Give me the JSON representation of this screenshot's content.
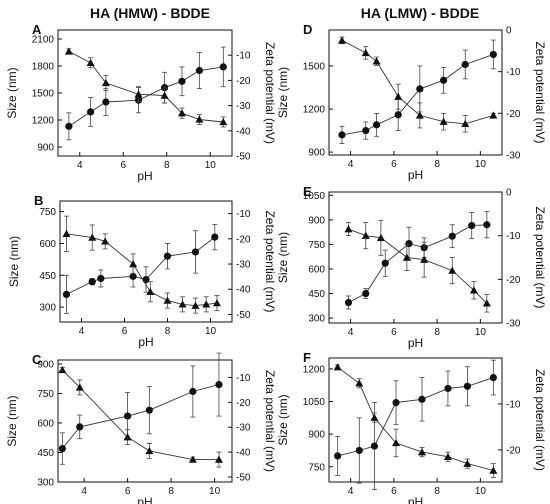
{
  "titles": {
    "left": "HA (HMW) - BDDE",
    "right": "HA (LMW) - BDDE"
  },
  "chart_data": [
    {
      "panel": "A",
      "type": "line",
      "xlabel": "pH",
      "ylabel": "Size (nm)",
      "y2label": "Zeta potential (mV)",
      "xlim": [
        3,
        11
      ],
      "ylim": [
        800,
        2200
      ],
      "y2lim": [
        -50,
        0
      ],
      "xticks": [
        4,
        6,
        8,
        10
      ],
      "yticks": [
        900,
        1200,
        1500,
        1800,
        2100
      ],
      "y2ticks": [
        -50,
        -40,
        -30,
        -20,
        -10
      ],
      "series": [
        {
          "marker": "circle",
          "axis": "left",
          "x": [
            3.5,
            4.5,
            5.2,
            6.7,
            7.9,
            8.7,
            9.5,
            10.6
          ],
          "y": [
            1130,
            1290,
            1400,
            1420,
            1560,
            1630,
            1750,
            1790
          ],
          "err": [
            150,
            160,
            150,
            140,
            170,
            160,
            200,
            220
          ]
        },
        {
          "marker": "triangle",
          "axis": "right",
          "x": [
            3.5,
            4.5,
            5.2,
            6.7,
            7.9,
            8.7,
            9.5,
            10.6
          ],
          "y": [
            -8.5,
            -13,
            -21,
            -25.5,
            -26,
            -33,
            -35.5,
            -36.5
          ],
          "err": [
            1,
            2,
            3,
            3,
            3,
            2,
            2,
            2
          ]
        }
      ]
    },
    {
      "panel": "B",
      "type": "line",
      "xlabel": "pH",
      "ylabel": "Size (nm)",
      "y2label": "Zeta potential (mV)",
      "xlim": [
        3,
        11
      ],
      "ylim": [
        230,
        800
      ],
      "y2lim": [
        -53,
        -5
      ],
      "xticks": [
        4,
        6,
        8,
        10
      ],
      "yticks": [
        300,
        450,
        600,
        750
      ],
      "y2ticks": [
        -50,
        -40,
        -30,
        -20,
        -10
      ],
      "series": [
        {
          "marker": "circle",
          "axis": "left",
          "x": [
            3.3,
            4.5,
            4.9,
            6.4,
            7.0,
            8.0,
            9.3,
            10.2
          ],
          "y": [
            360,
            420,
            435,
            445,
            430,
            540,
            560,
            630
          ],
          "err": [
            90,
            15,
            40,
            50,
            60,
            60,
            100,
            60
          ]
        },
        {
          "marker": "triangle",
          "axis": "right",
          "x": [
            3.3,
            4.5,
            5.1,
            6.4,
            7.2,
            8.0,
            8.7,
            9.3,
            9.8,
            10.3
          ],
          "y": [
            -18,
            -19.5,
            -21,
            -30,
            -41,
            -44.5,
            -46,
            -46.5,
            -46,
            -45.5
          ],
          "err": [
            7,
            5,
            3,
            4,
            4,
            3,
            3,
            3,
            3,
            3
          ]
        }
      ]
    },
    {
      "panel": "C",
      "type": "line",
      "xlabel": "pH",
      "ylabel": "Size (nm)",
      "y2label": "Zeta potential (mV)",
      "xlim": [
        2.8,
        10.8
      ],
      "ylim": [
        300,
        920
      ],
      "y2lim": [
        -52,
        -3
      ],
      "xticks": [
        4,
        6,
        8,
        10
      ],
      "yticks": [
        300,
        450,
        600,
        750,
        900
      ],
      "y2ticks": [
        -50,
        -40,
        -30,
        -20,
        -10
      ],
      "series": [
        {
          "marker": "circle",
          "axis": "left",
          "x": [
            3.0,
            3.8,
            6.0,
            7.0,
            9.0,
            10.2
          ],
          "y": [
            470,
            580,
            635,
            665,
            760,
            795
          ],
          "err": [
            80,
            60,
            120,
            120,
            130,
            160
          ]
        },
        {
          "marker": "triangle",
          "axis": "right",
          "x": [
            3.0,
            3.8,
            6.0,
            7.0,
            9.0,
            10.2
          ],
          "y": [
            -7,
            -14,
            -34,
            -39.5,
            -43,
            -43
          ],
          "err": [
            1,
            3,
            3,
            3,
            1,
            3
          ]
        }
      ]
    },
    {
      "panel": "D",
      "type": "line",
      "xlabel": "pH",
      "ylabel": "Size (nm)",
      "y2label": "Zeta potential (mV)",
      "xlim": [
        3,
        11
      ],
      "ylim": [
        880,
        1750
      ],
      "y2lim": [
        -30,
        0
      ],
      "xticks": [
        4,
        6,
        8,
        10
      ],
      "yticks": [
        900,
        1200,
        1500
      ],
      "y2ticks": [
        -30,
        -20,
        -10,
        0
      ],
      "series": [
        {
          "marker": "circle",
          "axis": "left",
          "x": [
            3.6,
            4.7,
            5.2,
            6.2,
            7.2,
            8.3,
            9.3,
            10.6
          ],
          "y": [
            1020,
            1050,
            1090,
            1160,
            1340,
            1400,
            1510,
            1580
          ],
          "err": [
            60,
            60,
            80,
            110,
            160,
            90,
            100,
            100
          ]
        },
        {
          "marker": "triangle",
          "axis": "right",
          "x": [
            3.6,
            4.7,
            5.2,
            6.2,
            7.2,
            8.3,
            9.3,
            10.6
          ],
          "y": [
            -2.5,
            -5.5,
            -7.5,
            -16,
            -20.5,
            -22,
            -22.5,
            -20.5
          ],
          "err": [
            0.8,
            1.5,
            1,
            3,
            3,
            2,
            2,
            0.5
          ]
        }
      ]
    },
    {
      "panel": "E",
      "type": "line",
      "xlabel": "pH",
      "ylabel": "Size (nm)",
      "y2label": "Zeta potential (mV)",
      "xlim": [
        3,
        11
      ],
      "ylim": [
        270,
        1070
      ],
      "y2lim": [
        -30,
        0
      ],
      "xticks": [
        4,
        6,
        8,
        10
      ],
      "yticks": [
        300,
        450,
        600,
        750,
        900,
        1050
      ],
      "y2ticks": [
        -30,
        -20,
        -10,
        0
      ],
      "series": [
        {
          "marker": "circle",
          "axis": "left",
          "x": [
            3.9,
            4.7,
            5.6,
            6.7,
            7.4,
            8.7,
            9.6,
            10.3
          ],
          "y": [
            395,
            450,
            635,
            755,
            730,
            800,
            865,
            870
          ],
          "err": [
            40,
            30,
            80,
            100,
            60,
            70,
            80,
            80
          ]
        },
        {
          "marker": "triangle",
          "axis": "right",
          "x": [
            3.9,
            4.7,
            5.4,
            6.6,
            7.4,
            8.7,
            9.7,
            10.3
          ],
          "y": [
            -8.5,
            -10,
            -10.5,
            -15,
            -15.5,
            -18,
            -22.5,
            -25.5
          ],
          "err": [
            1.5,
            3,
            4,
            3,
            4,
            3,
            2,
            2
          ]
        }
      ]
    },
    {
      "panel": "F",
      "type": "line",
      "xlabel": "pH",
      "ylabel": "Size (nm)",
      "y2label": "Zeta potential (mV)",
      "xlim": [
        3,
        11
      ],
      "ylim": [
        680,
        1250
      ],
      "y2lim": [
        -27,
        0
      ],
      "xticks": [
        4,
        6,
        8,
        10
      ],
      "yticks": [
        750,
        900,
        1050,
        1200
      ],
      "y2ticks": [
        -20,
        -10
      ],
      "series": [
        {
          "marker": "circle",
          "axis": "left",
          "x": [
            3.4,
            4.4,
            5.1,
            6.1,
            7.3,
            8.5,
            9.4,
            10.6
          ],
          "y": [
            800,
            825,
            845,
            1045,
            1060,
            1110,
            1120,
            1160
          ],
          "err": [
            90,
            150,
            200,
            100,
            100,
            80,
            90,
            80
          ]
        },
        {
          "marker": "triangle",
          "axis": "right",
          "x": [
            3.4,
            4.4,
            5.1,
            6.1,
            7.3,
            8.5,
            9.4,
            10.6
          ],
          "y": [
            -2,
            -5.5,
            -13,
            -18.5,
            -20.5,
            -21.5,
            -23,
            -24.5
          ],
          "err": [
            0.5,
            1,
            1,
            3,
            1,
            1,
            1,
            1.5
          ]
        }
      ]
    }
  ]
}
